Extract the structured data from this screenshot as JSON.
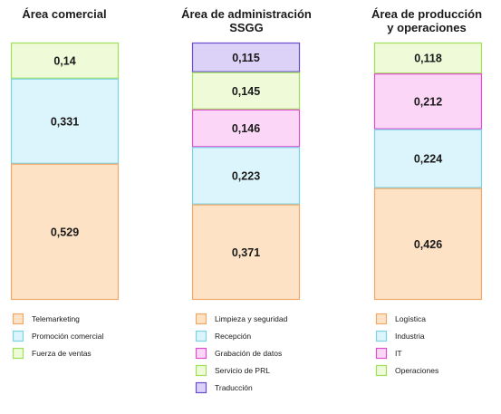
{
  "chart_data": [
    {
      "type": "bar",
      "stacked": true,
      "title": [
        "Área comercial"
      ],
      "segments_top_to_bottom": [
        {
          "name": "Fuerza de ventas",
          "value": 0.14,
          "label": "0,14"
        },
        {
          "name": "Promoción comercial",
          "value": 0.331,
          "label": "0,331"
        },
        {
          "name": "Telemarketing",
          "value": 0.529,
          "label": "0,529"
        }
      ],
      "legend": [
        "Telemarketing",
        "Promoción comercial",
        "Fuerza de ventas"
      ]
    },
    {
      "type": "bar",
      "stacked": true,
      "title": [
        "Área de administración",
        "SSGG"
      ],
      "segments_top_to_bottom": [
        {
          "name": "Traducción",
          "value": 0.115,
          "label": "0,115"
        },
        {
          "name": "Servicio de PRL",
          "value": 0.145,
          "label": "0,145"
        },
        {
          "name": "Grabación de datos",
          "value": 0.146,
          "label": "0,146"
        },
        {
          "name": "Recepción",
          "value": 0.223,
          "label": "0,223"
        },
        {
          "name": "Limpieza y seguridad",
          "value": 0.371,
          "label": "0,371"
        }
      ],
      "legend": [
        "Limpieza y seguridad",
        "Recepción",
        "Grabación de datos",
        "Servicio de PRL",
        "Traducción"
      ]
    },
    {
      "type": "bar",
      "stacked": true,
      "title": [
        "Área de producción",
        "y operaciones"
      ],
      "segments_top_to_bottom": [
        {
          "name": "Operaciones",
          "value": 0.118,
          "label": "0,118"
        },
        {
          "name": "IT",
          "value": 0.212,
          "label": "0,212"
        },
        {
          "name": "Industria",
          "value": 0.224,
          "label": "0,224"
        },
        {
          "name": "Logística",
          "value": 0.426,
          "label": "0,426"
        }
      ],
      "legend": [
        "Logística",
        "Industria",
        "IT",
        "Operaciones"
      ]
    }
  ],
  "colors": {
    "orange": {
      "fill": "#fde2c6",
      "stroke": "#f0a868"
    },
    "cyan": {
      "fill": "#dcf4fb",
      "stroke": "#7dd3e6"
    },
    "green": {
      "fill": "#eefad8",
      "stroke": "#9fe05a"
    },
    "magenta": {
      "fill": "#fbd6f6",
      "stroke": "#e04fd0"
    },
    "purple": {
      "fill": "#dcd2f8",
      "stroke": "#6a4ccf"
    }
  },
  "series_colors": {
    "Telemarketing": "orange",
    "Promoción comercial": "cyan",
    "Fuerza de ventas": "green",
    "Limpieza y seguridad": "orange",
    "Recepción": "cyan",
    "Grabación de datos": "magenta",
    "Servicio de PRL": "green",
    "Traducción": "purple",
    "Logística": "orange",
    "Industria": "cyan",
    "IT": "magenta",
    "Operaciones": "green"
  }
}
